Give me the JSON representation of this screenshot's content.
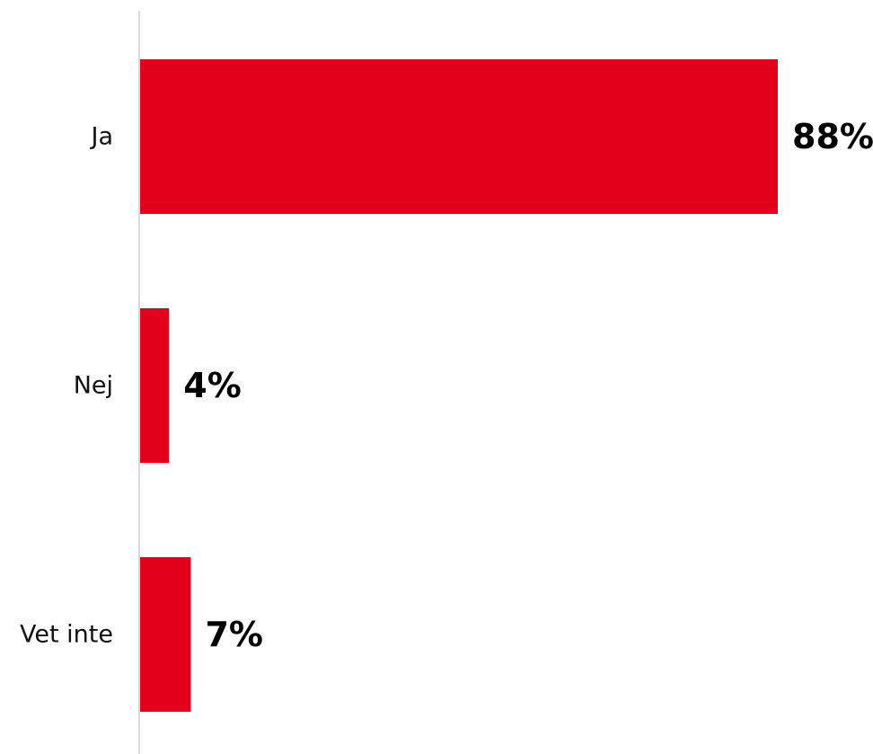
{
  "chart_data": {
    "type": "bar",
    "orientation": "horizontal",
    "categories": [
      "Ja",
      "Nej",
      "Vet inte"
    ],
    "values": [
      88,
      4,
      7
    ],
    "value_labels": [
      "88%",
      "4%",
      "7%"
    ],
    "unit": "%",
    "xlim": [
      0,
      88
    ],
    "grid": false,
    "legend": "none",
    "bar_color": "#e2001a",
    "axis_color": "#d9d9d9"
  }
}
